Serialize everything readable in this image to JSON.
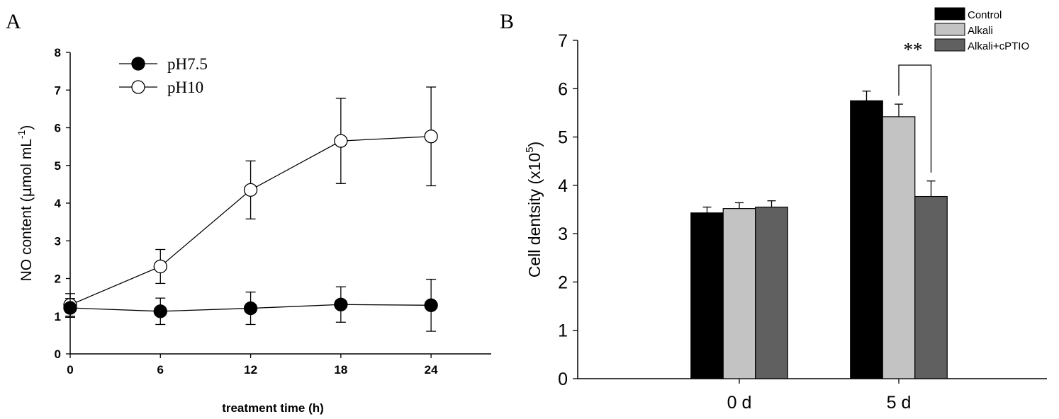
{
  "chart_data": [
    {
      "type": "line",
      "panel_label": "A",
      "xlabel": "treatment time (h)",
      "ylabel": {
        "prefix": "NO content (",
        "mu": "µ",
        "unit": "mol mL",
        "sup": "-1",
        "suffix": ")"
      },
      "x": [
        0,
        6,
        12,
        18,
        24
      ],
      "xlim": [
        0,
        28
      ],
      "ylim": [
        0,
        8
      ],
      "xticks": [
        "0",
        "6",
        "12",
        "18",
        "24"
      ],
      "yticks": [
        "0",
        "1",
        "2",
        "3",
        "4",
        "5",
        "6",
        "7",
        "8"
      ],
      "grid": false,
      "legend_position": "top-left",
      "series": [
        {
          "name": "pH7.5",
          "marker": "filled",
          "values": [
            1.22,
            1.13,
            1.21,
            1.31,
            1.29
          ],
          "errors": [
            0.25,
            0.35,
            0.43,
            0.47,
            0.69
          ]
        },
        {
          "name": "pH10",
          "marker": "open",
          "values": [
            1.3,
            2.32,
            4.35,
            5.65,
            5.77
          ],
          "errors": [
            0.3,
            0.45,
            0.77,
            1.13,
            1.31
          ]
        }
      ]
    },
    {
      "type": "bar",
      "panel_label": "B",
      "xlabel": "",
      "ylabel": {
        "prefix": "Cell dentsity (x10",
        "sup": "5",
        "suffix": ")"
      },
      "categories": [
        "0 d",
        "5 d"
      ],
      "ylim": [
        0,
        7
      ],
      "yticks": [
        "0",
        "1",
        "2",
        "3",
        "4",
        "5",
        "6",
        "7"
      ],
      "grid": false,
      "legend_position": "top-right",
      "series": [
        {
          "name": "Control",
          "color": "#000000",
          "values": [
            3.43,
            5.75
          ],
          "errors": [
            0.12,
            0.2
          ]
        },
        {
          "name": "Alkali",
          "color": "#c3c3c3",
          "values": [
            3.52,
            5.42
          ],
          "errors": [
            0.12,
            0.26
          ]
        },
        {
          "name": "Alkali+cPTIO",
          "color": "#606060",
          "values": [
            3.55,
            3.77
          ],
          "errors": [
            0.13,
            0.32
          ]
        }
      ],
      "annotation": {
        "text": "**",
        "between": [
          "Alkali",
          "Alkali+cPTIO"
        ],
        "category": "5 d"
      }
    }
  ]
}
